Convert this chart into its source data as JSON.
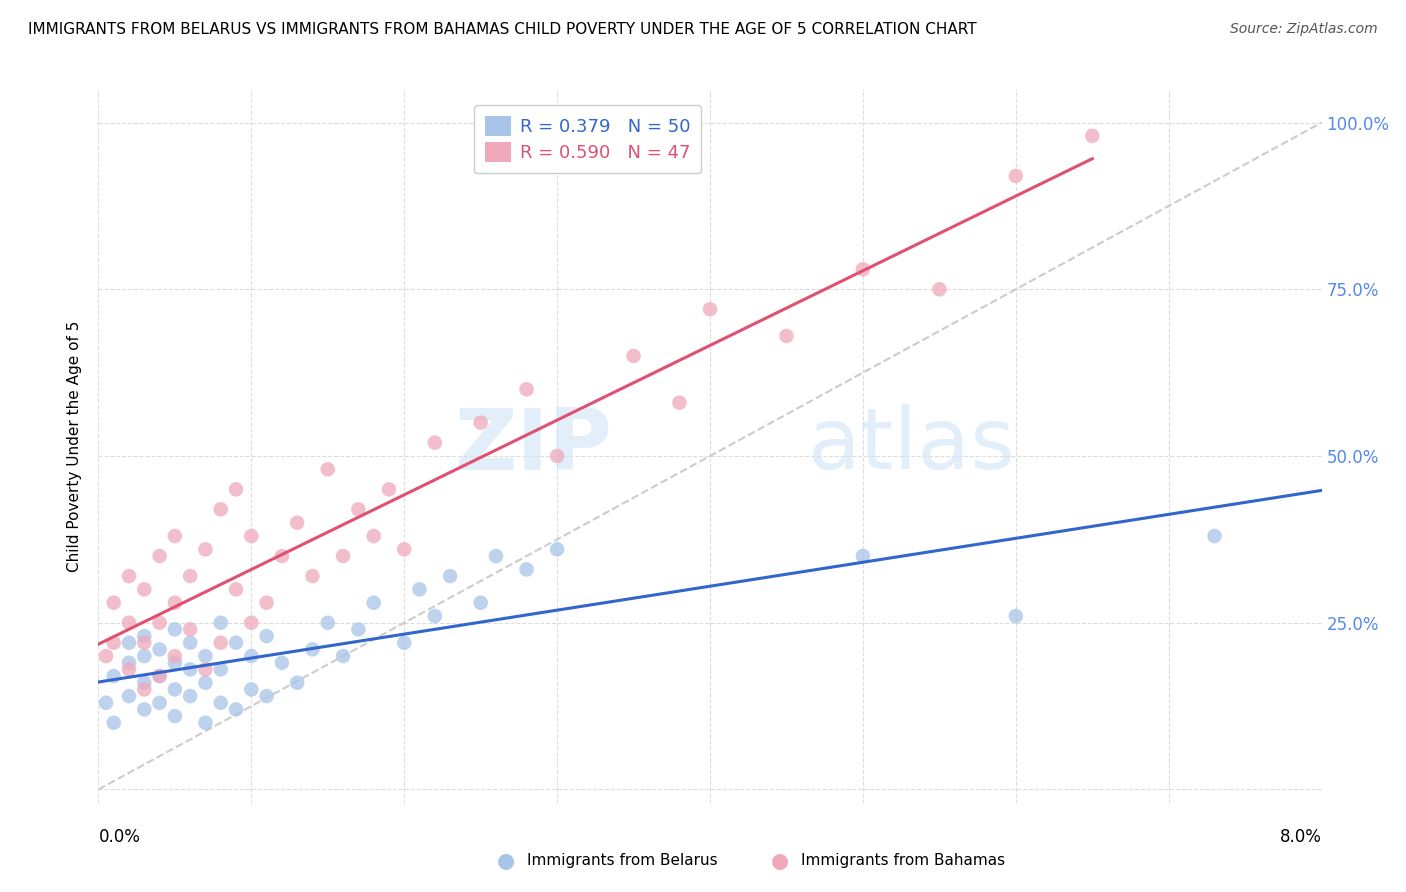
{
  "title": "IMMIGRANTS FROM BELARUS VS IMMIGRANTS FROM BAHAMAS CHILD POVERTY UNDER THE AGE OF 5 CORRELATION CHART",
  "source": "Source: ZipAtlas.com",
  "ylabel": "Child Poverty Under the Age of 5",
  "legend_label1": "Immigrants from Belarus",
  "legend_label2": "Immigrants from Bahamas",
  "r1": 0.379,
  "n1": 50,
  "r2": 0.59,
  "n2": 47,
  "color1": "#a8c4e8",
  "color2": "#f0a8bc",
  "trendline1_color": "#3366cc",
  "trendline2_color": "#e05070",
  "diagonal_color": "#cccccc",
  "xlim": [
    0.0,
    0.08
  ],
  "ylim": [
    -0.02,
    1.05
  ],
  "belarus_x": [
    0.0005,
    0.001,
    0.001,
    0.002,
    0.002,
    0.002,
    0.003,
    0.003,
    0.003,
    0.003,
    0.004,
    0.004,
    0.004,
    0.005,
    0.005,
    0.005,
    0.005,
    0.006,
    0.006,
    0.006,
    0.007,
    0.007,
    0.007,
    0.008,
    0.008,
    0.008,
    0.009,
    0.009,
    0.01,
    0.01,
    0.011,
    0.011,
    0.012,
    0.013,
    0.014,
    0.015,
    0.016,
    0.017,
    0.018,
    0.02,
    0.021,
    0.022,
    0.023,
    0.025,
    0.026,
    0.028,
    0.03,
    0.05,
    0.06,
    0.073
  ],
  "belarus_y": [
    0.13,
    0.1,
    0.17,
    0.14,
    0.19,
    0.22,
    0.12,
    0.16,
    0.2,
    0.23,
    0.13,
    0.17,
    0.21,
    0.11,
    0.15,
    0.19,
    0.24,
    0.14,
    0.18,
    0.22,
    0.1,
    0.16,
    0.2,
    0.13,
    0.18,
    0.25,
    0.12,
    0.22,
    0.15,
    0.2,
    0.14,
    0.23,
    0.19,
    0.16,
    0.21,
    0.25,
    0.2,
    0.24,
    0.28,
    0.22,
    0.3,
    0.26,
    0.32,
    0.28,
    0.35,
    0.33,
    0.36,
    0.35,
    0.26,
    0.38
  ],
  "bahamas_x": [
    0.0005,
    0.001,
    0.001,
    0.002,
    0.002,
    0.002,
    0.003,
    0.003,
    0.003,
    0.004,
    0.004,
    0.004,
    0.005,
    0.005,
    0.005,
    0.006,
    0.006,
    0.007,
    0.007,
    0.008,
    0.008,
    0.009,
    0.009,
    0.01,
    0.01,
    0.011,
    0.012,
    0.013,
    0.014,
    0.015,
    0.016,
    0.017,
    0.018,
    0.019,
    0.02,
    0.022,
    0.025,
    0.028,
    0.03,
    0.035,
    0.038,
    0.04,
    0.045,
    0.05,
    0.055,
    0.06,
    0.065
  ],
  "bahamas_y": [
    0.2,
    0.22,
    0.28,
    0.18,
    0.25,
    0.32,
    0.15,
    0.22,
    0.3,
    0.17,
    0.25,
    0.35,
    0.2,
    0.28,
    0.38,
    0.24,
    0.32,
    0.18,
    0.36,
    0.22,
    0.42,
    0.3,
    0.45,
    0.25,
    0.38,
    0.28,
    0.35,
    0.4,
    0.32,
    0.48,
    0.35,
    0.42,
    0.38,
    0.45,
    0.36,
    0.52,
    0.55,
    0.6,
    0.5,
    0.65,
    0.58,
    0.72,
    0.68,
    0.78,
    0.75,
    0.92,
    0.98
  ],
  "watermark_zip": "ZIP",
  "watermark_atlas": "atlas"
}
